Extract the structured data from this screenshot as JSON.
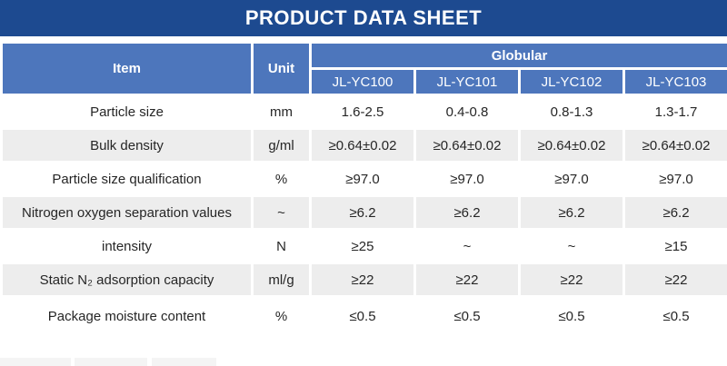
{
  "title": "PRODUCT DATA SHEET",
  "colors": {
    "banner_blue": "#1d4a90",
    "header_blue": "#4d76bc",
    "alt_row_gray": "#ededed",
    "body_text": "#262626",
    "header_text": "#ffffff"
  },
  "table": {
    "item_header": "Item",
    "unit_header": "Unit",
    "group_header": "Globular",
    "model_columns": [
      "JL-YC100",
      "JL-YC101",
      "JL-YC102",
      "JL-YC103"
    ],
    "rows": [
      {
        "item": "Particle size",
        "unit": "mm",
        "values": [
          "1.6-2.5",
          "0.4-0.8",
          "0.8-1.3",
          "1.3-1.7"
        ]
      },
      {
        "item": "Bulk density",
        "unit": "g/ml",
        "values": [
          "≥0.64±0.02",
          "≥0.64±0.02",
          "≥0.64±0.02",
          "≥0.64±0.02"
        ]
      },
      {
        "item": "Particle size qualification",
        "unit": "%",
        "values": [
          "≥97.0",
          "≥97.0",
          "≥97.0",
          "≥97.0"
        ]
      },
      {
        "item": "Nitrogen oxygen separation values",
        "unit": "~",
        "values": [
          "≥6.2",
          "≥6.2",
          "≥6.2",
          "≥6.2"
        ]
      },
      {
        "item": "intensity",
        "unit": "N",
        "values": [
          "≥25",
          "~",
          "~",
          "≥15"
        ]
      },
      {
        "item": "Static N₂ adsorption capacity",
        "unit": "ml/g",
        "values": [
          "≥22",
          "≥22",
          "≥22",
          "≥22"
        ]
      },
      {
        "item": "Package moisture content",
        "unit": "%",
        "values": [
          "≤0.5",
          "≤0.5",
          "≤0.5",
          "≤0.5"
        ]
      }
    ]
  }
}
